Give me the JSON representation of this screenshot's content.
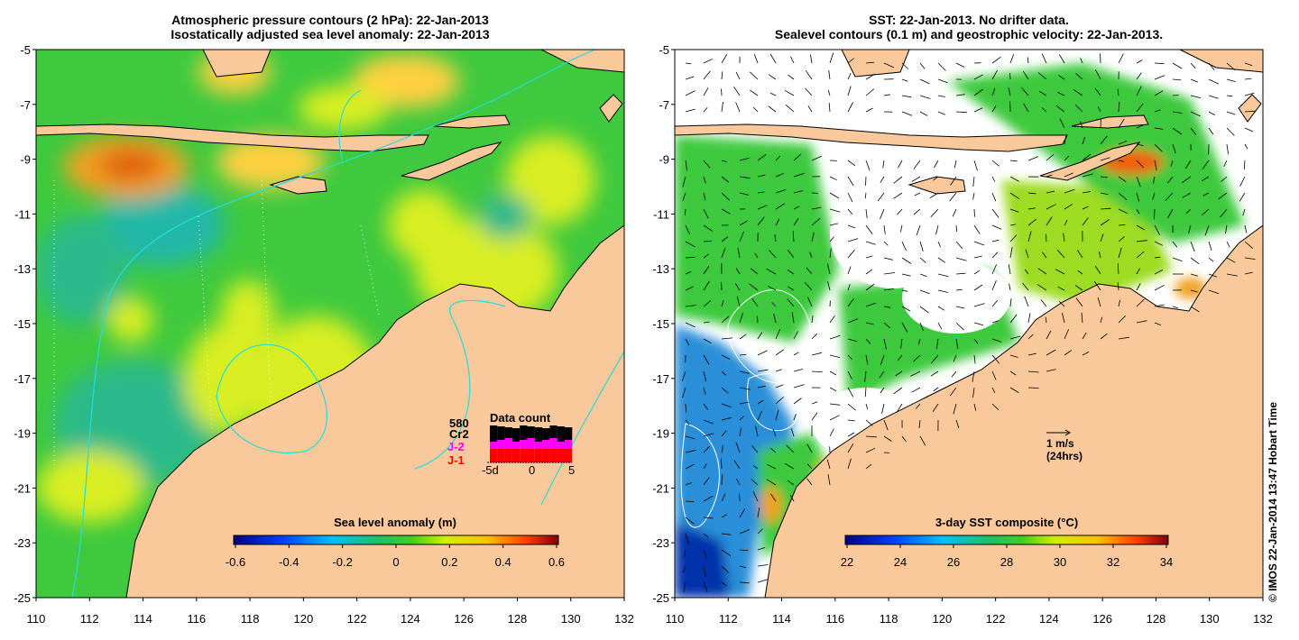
{
  "left_panel": {
    "title_line1": "Atmospheric pressure contours (2 hPa): 22-Jan-2013",
    "title_line2": "Isostatically adjusted sea level anomaly: 22-Jan-2013",
    "colorbar_label": "Sea level anomaly (m)",
    "colorbar_ticks": [
      "-0.6",
      "-0.4",
      "-0.2",
      "0",
      "0.2",
      "0.4",
      "0.6"
    ],
    "data_count": {
      "title": "Data count",
      "max_label": "580",
      "sat_cr2": "Cr2",
      "sat_j2": "J-2",
      "sat_j1": "J-1",
      "x_ticks": [
        "-5d",
        "0",
        "5"
      ],
      "colors": {
        "cr2": "#000000",
        "j2": "#ff00ff",
        "j1": "#ff0000"
      }
    }
  },
  "right_panel": {
    "title_line1": "SST: 22-Jan-2013. No drifter data.",
    "title_line2": "Sealevel contours (0.1 m) and geostrophic velocity: 22-Jan-2013.",
    "colorbar_label": "3-day SST composite (°C)",
    "colorbar_ticks": [
      "22",
      "24",
      "26",
      "28",
      "30",
      "32",
      "34"
    ],
    "velocity_label": "1 m/s",
    "velocity_sub": "(24hrs)"
  },
  "axes": {
    "y_ticks": [
      "-5",
      "-7",
      "-9",
      "-11",
      "-13",
      "-15",
      "-17",
      "-19",
      "-21",
      "-23",
      "-25"
    ],
    "x_ticks": [
      "110",
      "112",
      "114",
      "116",
      "118",
      "120",
      "122",
      "124",
      "126",
      "128",
      "130",
      "132"
    ]
  },
  "credit": "© IMOS 22-Jan-2014 13:47 Hobart Time",
  "colors": {
    "land": "#f9c89b",
    "ocean_green": "#3ec93e",
    "contour_cyan": "#22dddd"
  },
  "chart_data": [
    {
      "type": "heatmap",
      "title": "Atmospheric pressure contours (2 hPa): 22-Jan-2013 / Isostatically adjusted sea level anomaly: 22-Jan-2013",
      "xlim": [
        110,
        132
      ],
      "ylim": [
        -25,
        -5
      ],
      "colorbar": {
        "label": "Sea level anomaly (m)",
        "range": [
          -0.6,
          0.6
        ]
      }
    },
    {
      "type": "heatmap",
      "title": "SST: 22-Jan-2013. No drifter data. / Sealevel contours (0.1 m) and geostrophic velocity: 22-Jan-2013.",
      "xlim": [
        110,
        132
      ],
      "ylim": [
        -25,
        -5
      ],
      "colorbar": {
        "label": "3-day SST composite (°C)",
        "range": [
          22,
          34
        ]
      }
    }
  ]
}
